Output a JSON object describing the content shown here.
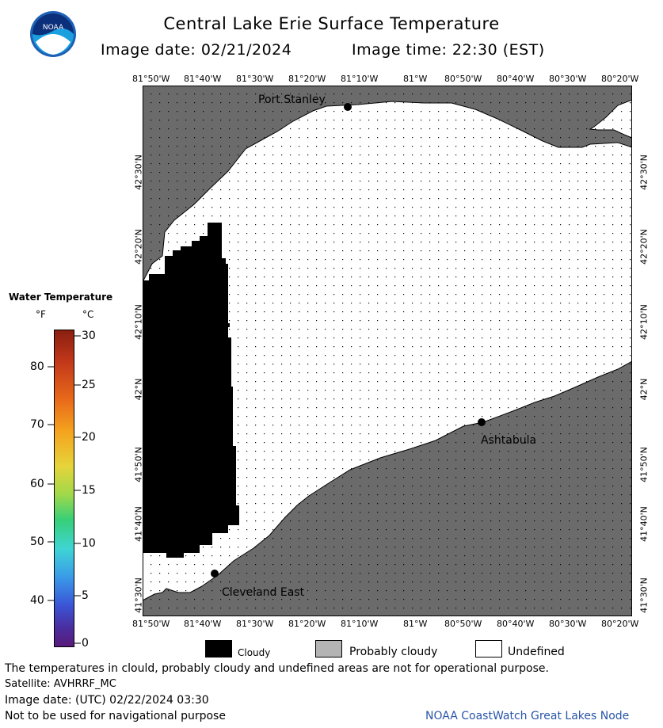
{
  "header": {
    "title": "Central Lake Erie Surface Temperature",
    "image_date_label": "Image date: 02/21/2024",
    "image_time_label": "Image time: 22:30 (EST)",
    "logo_text": "NOAA"
  },
  "map": {
    "lon_ticks": [
      "81°50'W",
      "81°40'W",
      "81°30'W",
      "81°20'W",
      "81°10'W",
      "81°W",
      "80°50'W",
      "80°40'W",
      "80°30'W",
      "80°20'W"
    ],
    "lat_ticks": [
      "42°30'N",
      "42°20'N",
      "42°10'N",
      "42°N",
      "41°50'N",
      "41°40'N",
      "41°30'N"
    ],
    "places": {
      "port_stanley": "Port Stanley",
      "ashtabula": "Ashtabula",
      "cleveland_east": "Cleveland East"
    },
    "colors": {
      "land": "#6b6b6b",
      "water": "#ffffff",
      "cloud": "#000000",
      "grid": "#000000"
    }
  },
  "legend": {
    "title": "Water Temperature",
    "unit_f": "°F",
    "unit_c": "°C",
    "f_labels": [
      "80",
      "70",
      "60",
      "50",
      "40"
    ],
    "c_labels": [
      "30",
      "25",
      "20",
      "15",
      "10",
      "5",
      "0"
    ]
  },
  "key": {
    "cloudy": "Cloudy",
    "probably_cloudy": "Probably cloudy",
    "undefined": "Undefined",
    "colors": {
      "cloudy": "#000000",
      "probably_cloudy": "#b4b4b4",
      "undefined": "#ffffff"
    }
  },
  "footer": {
    "disclaimer": "The temperatures in clould, probably cloudy and undefined areas are not for operational purpose.",
    "satellite": "Satellite: AVHRRF_MC",
    "utc_date": "Image date: (UTC) 02/22/2024  03:30",
    "nav_warning": "Not to be used for navigational purpose",
    "credit": "NOAA CoastWatch Great Lakes Node"
  }
}
